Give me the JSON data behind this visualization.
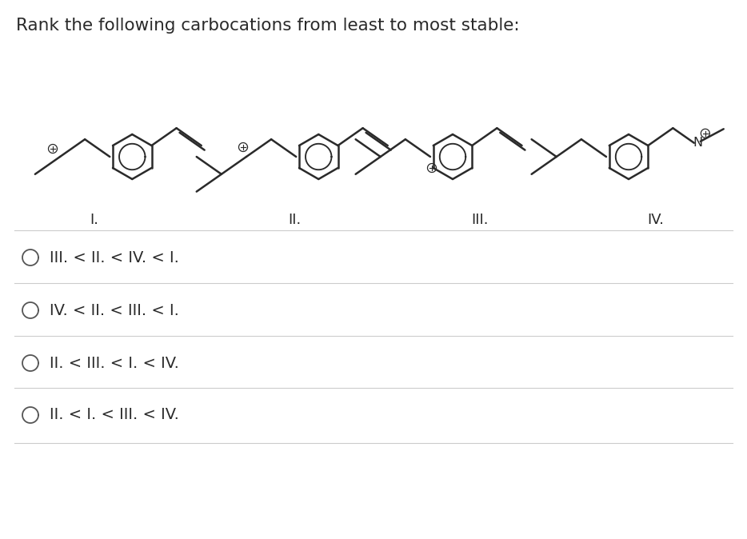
{
  "title": "Rank the following carbocations from least to most stable:",
  "title_fontsize": 15.5,
  "background_color": "#ffffff",
  "text_color": "#2a2a2a",
  "line_color": "#2a2a2a",
  "answer_options": [
    "III. < II. < IV. < I.",
    "IV. < II. < III. < I.",
    "II. < III. < I. < IV.",
    "II. < I. < III. < IV."
  ],
  "structure_labels": [
    "I.",
    "II.",
    "III.",
    "IV."
  ],
  "divider_color": "#cccccc",
  "option_fontsize": 14,
  "label_fontsize": 13
}
